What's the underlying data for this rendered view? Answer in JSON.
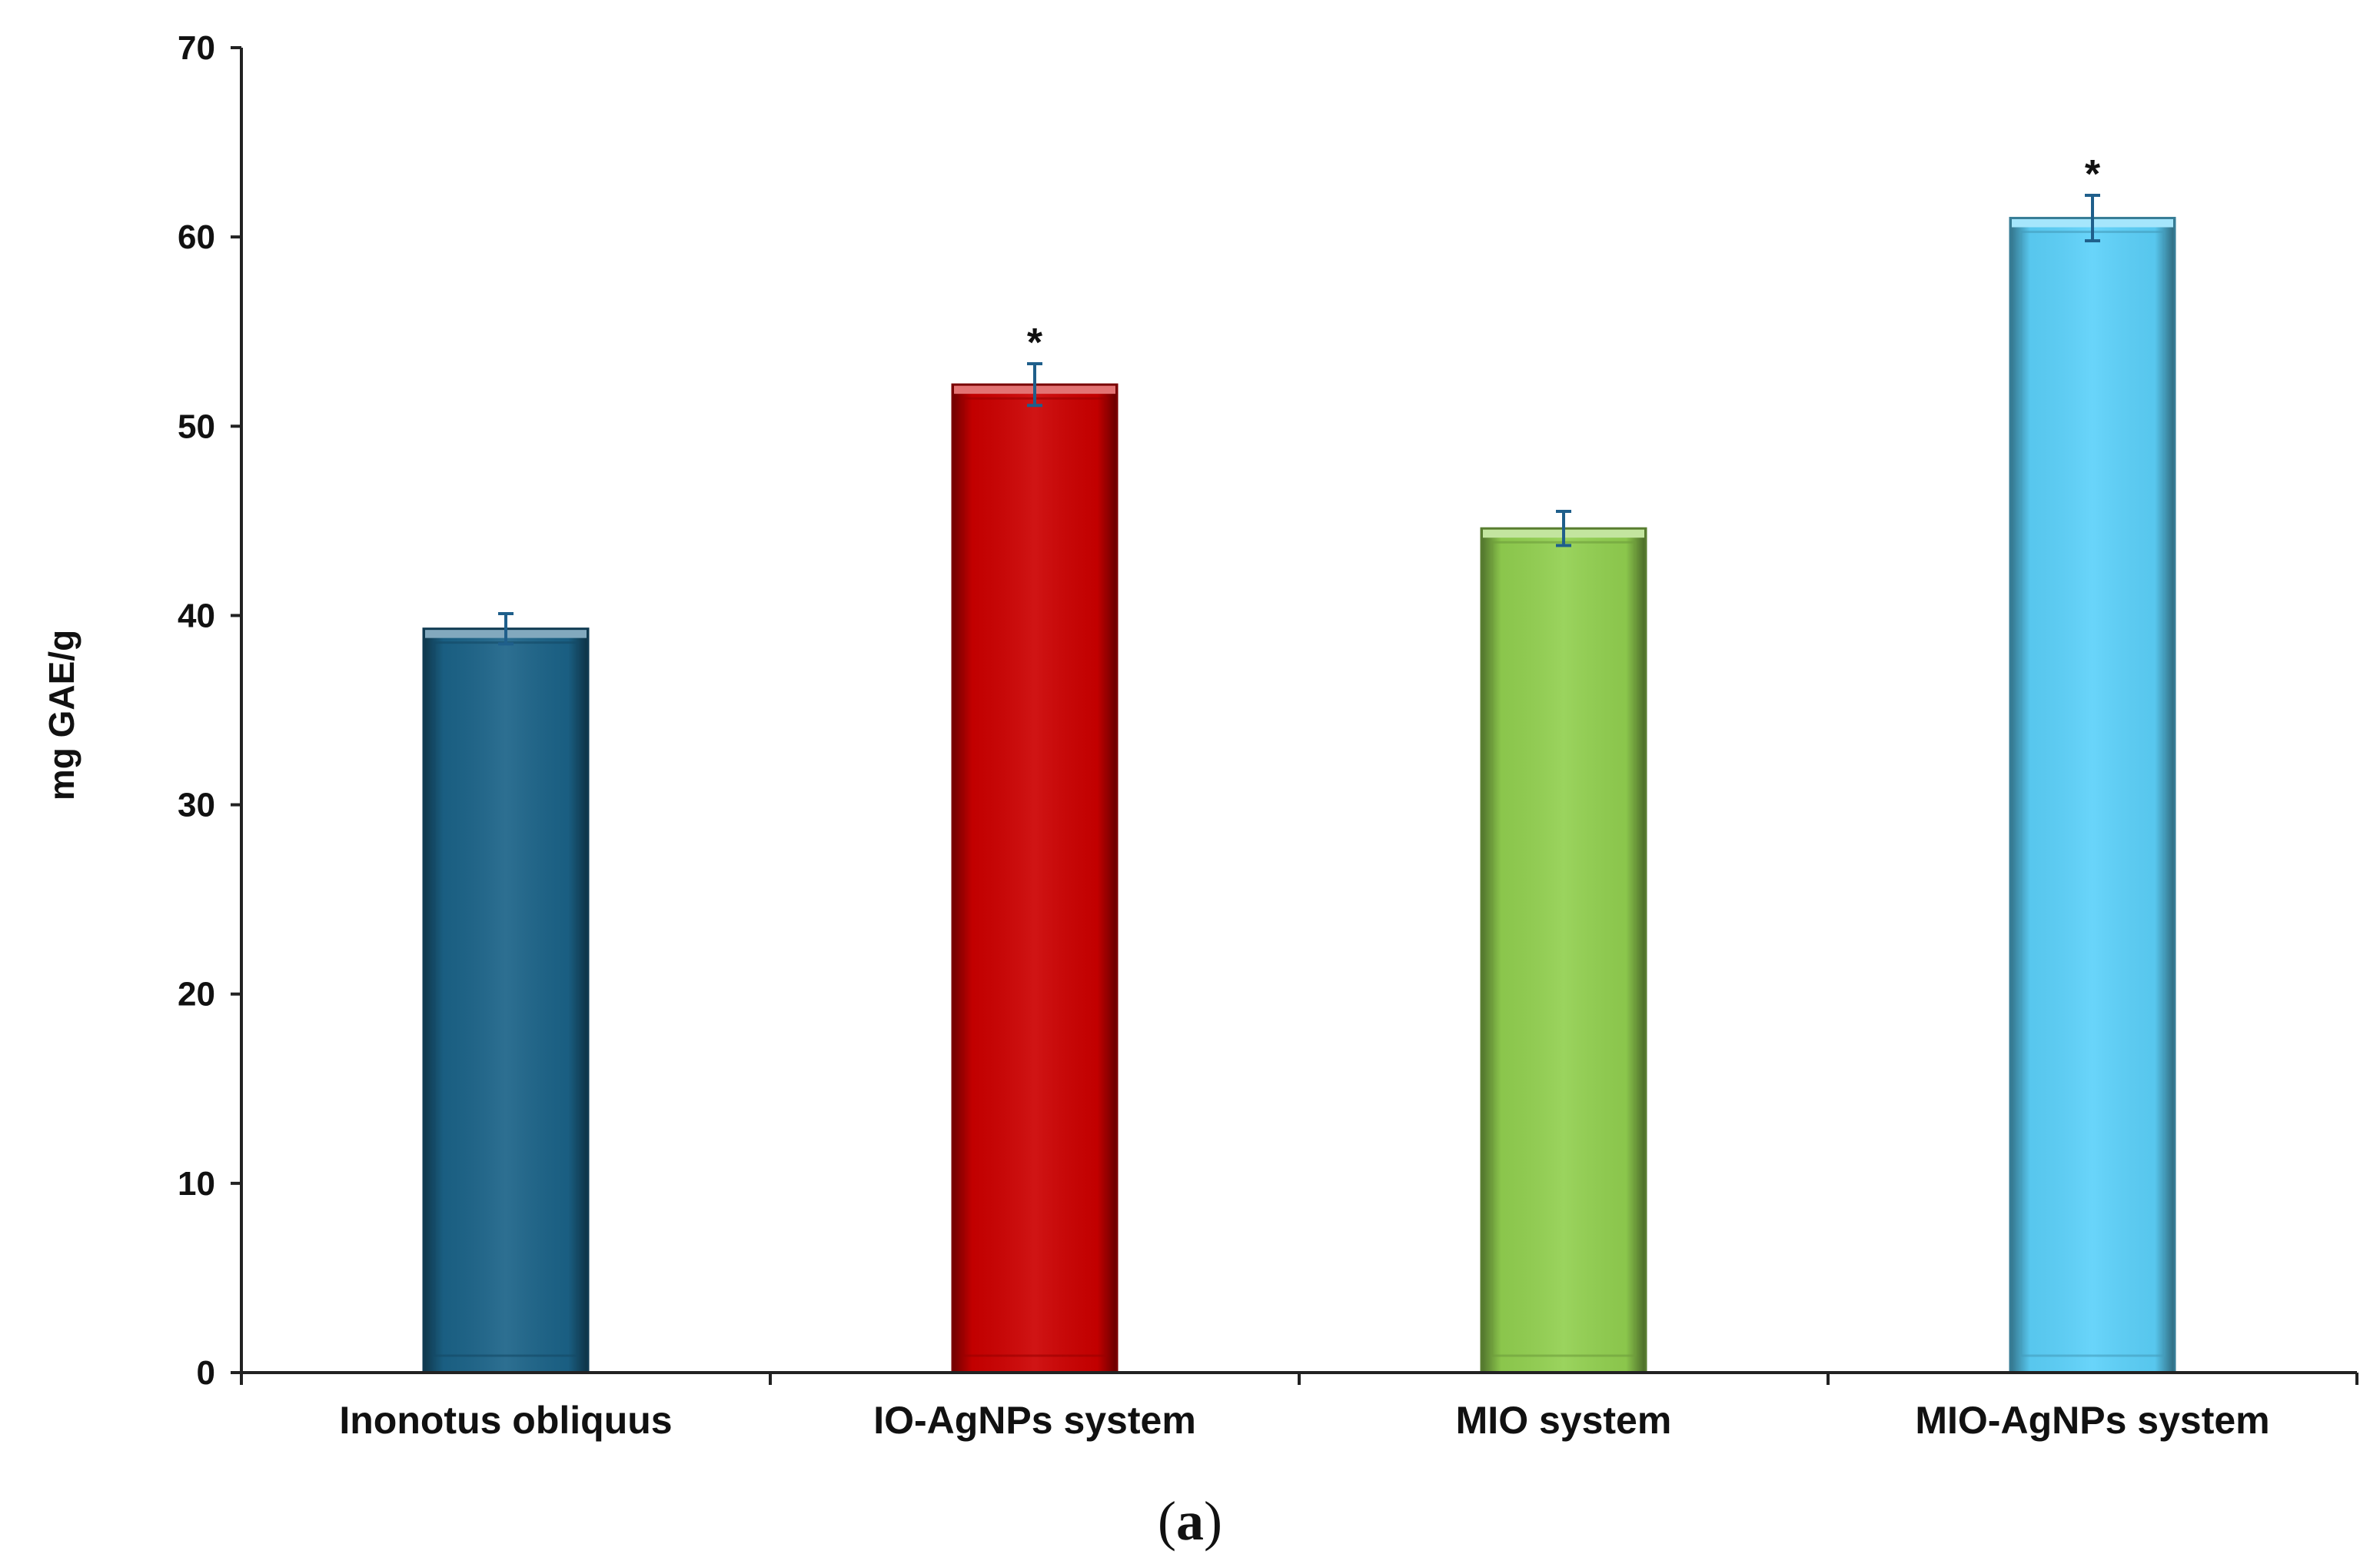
{
  "chart_data": {
    "type": "bar",
    "title": "",
    "xlabel": "",
    "ylabel": "mg GAE/g",
    "ylim": [
      0,
      70
    ],
    "yticks": [
      0,
      10,
      20,
      30,
      40,
      50,
      60,
      70
    ],
    "grid": false,
    "legend": "none",
    "categories": [
      "Inonotus obliquus",
      "IO-AgNPs system",
      "MIO system",
      "MIO-AgNPs system"
    ],
    "values": [
      39.3,
      52.2,
      44.6,
      61.0
    ],
    "errors": [
      0.8,
      1.1,
      0.9,
      1.2
    ],
    "significance": [
      "",
      "*",
      "",
      "*"
    ],
    "colors": [
      "#1b6388",
      "#cc0000",
      "#92d050",
      "#5cd1fa"
    ],
    "panel_label": "(a)"
  }
}
